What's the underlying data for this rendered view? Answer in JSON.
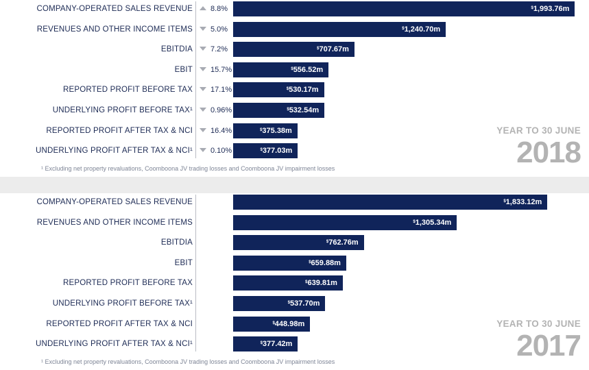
{
  "chart_data": [
    {
      "type": "bar",
      "orientation": "horizontal",
      "period_label": "YEAR TO 30 JUNE",
      "year": "2018",
      "categories": [
        "COMPANY-OPERATED SALES REVENUE",
        "REVENUES AND OTHER INCOME ITEMS",
        "EBITDIA",
        "EBIT",
        "REPORTED PROFIT BEFORE TAX",
        "UNDERLYING PROFIT BEFORE TAX¹",
        "REPORTED PROFIT AFTER TAX & NCI",
        "UNDERLYING PROFIT AFTER TAX & NCI¹"
      ],
      "values": [
        1993.76,
        1240.7,
        707.67,
        556.52,
        530.17,
        532.54,
        375.38,
        377.03
      ],
      "value_labels": [
        "1,993.76m",
        "1,240.70m",
        "707.67m",
        "556.52m",
        "530.17m",
        "532.54m",
        "375.38m",
        "377.03m"
      ],
      "currency_symbol": "$",
      "changes": [
        "8.8%",
        "5.0%",
        "7.2%",
        "15.7%",
        "17.1%",
        "0.96%",
        "16.4%",
        "0.10%"
      ],
      "change_directions": [
        "up",
        "down",
        "down",
        "down",
        "down",
        "down",
        "down",
        "down"
      ],
      "footnote": "¹ Excluding net property revaluations, Coomboona JV trading losses and Coomboona JV impairment losses",
      "xlim": [
        0,
        2000
      ],
      "grid": false,
      "legend": "none"
    },
    {
      "type": "bar",
      "orientation": "horizontal",
      "period_label": "YEAR TO 30 JUNE",
      "year": "2017",
      "categories": [
        "COMPANY-OPERATED SALES REVENUE",
        "REVENUES AND OTHER INCOME ITEMS",
        "EBITDIA",
        "EBIT",
        "REPORTED PROFIT BEFORE TAX",
        "UNDERLYING PROFIT BEFORE TAX¹",
        "REPORTED PROFIT AFTER TAX & NCI",
        "UNDERLYING PROFIT AFTER TAX & NCI¹"
      ],
      "values": [
        1833.12,
        1305.34,
        762.76,
        659.88,
        639.81,
        537.7,
        448.98,
        377.42
      ],
      "value_labels": [
        "1,833.12m",
        "1,305.34m",
        "762.76m",
        "659.88m",
        "639.81m",
        "537.70m",
        "448.98m",
        "377.42m"
      ],
      "currency_symbol": "$",
      "footnote": "¹ Excluding net property revaluations, Coomboona JV trading losses and Coomboona JV impairment losses",
      "xlim": [
        0,
        2000
      ],
      "grid": false,
      "legend": "none"
    }
  ]
}
